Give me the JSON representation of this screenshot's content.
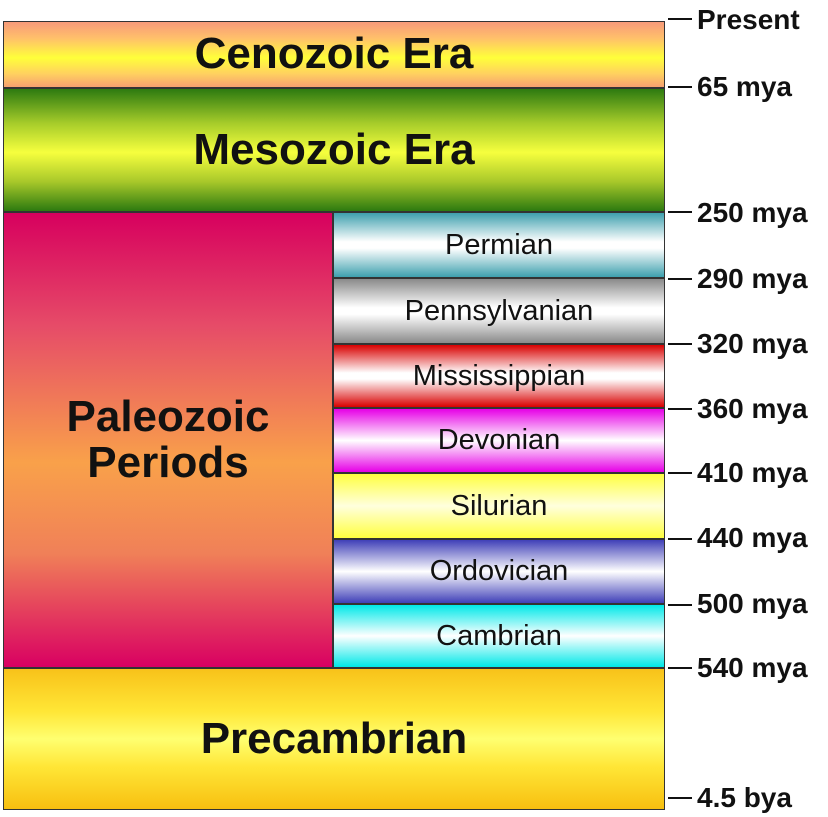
{
  "eras": {
    "cenozoic": "Cenozoic Era",
    "mesozoic": "Mesozoic Era",
    "paleozoic_line1": "Paleozoic",
    "paleozoic_line2": "Periods",
    "precambrian": "Precambrian"
  },
  "periods": [
    {
      "name": "Permian",
      "color": "#3ea0ae"
    },
    {
      "name": "Pennsylvanian",
      "color": "#8a8a8a"
    },
    {
      "name": "Mississippian",
      "color": "#d80000"
    },
    {
      "name": "Devonian",
      "color": "#e600e6"
    },
    {
      "name": "Silurian",
      "color": "#ffff40"
    },
    {
      "name": "Ordovician",
      "color": "#4040b8"
    },
    {
      "name": "Cambrian",
      "color": "#00e8e8"
    }
  ],
  "time_markers": [
    "Present",
    "65 mya",
    "250 mya",
    "290 mya",
    "320 mya",
    "360 mya",
    "410 mya",
    "440 mya",
    "500 mya",
    "540 mya",
    "4.5 bya"
  ]
}
